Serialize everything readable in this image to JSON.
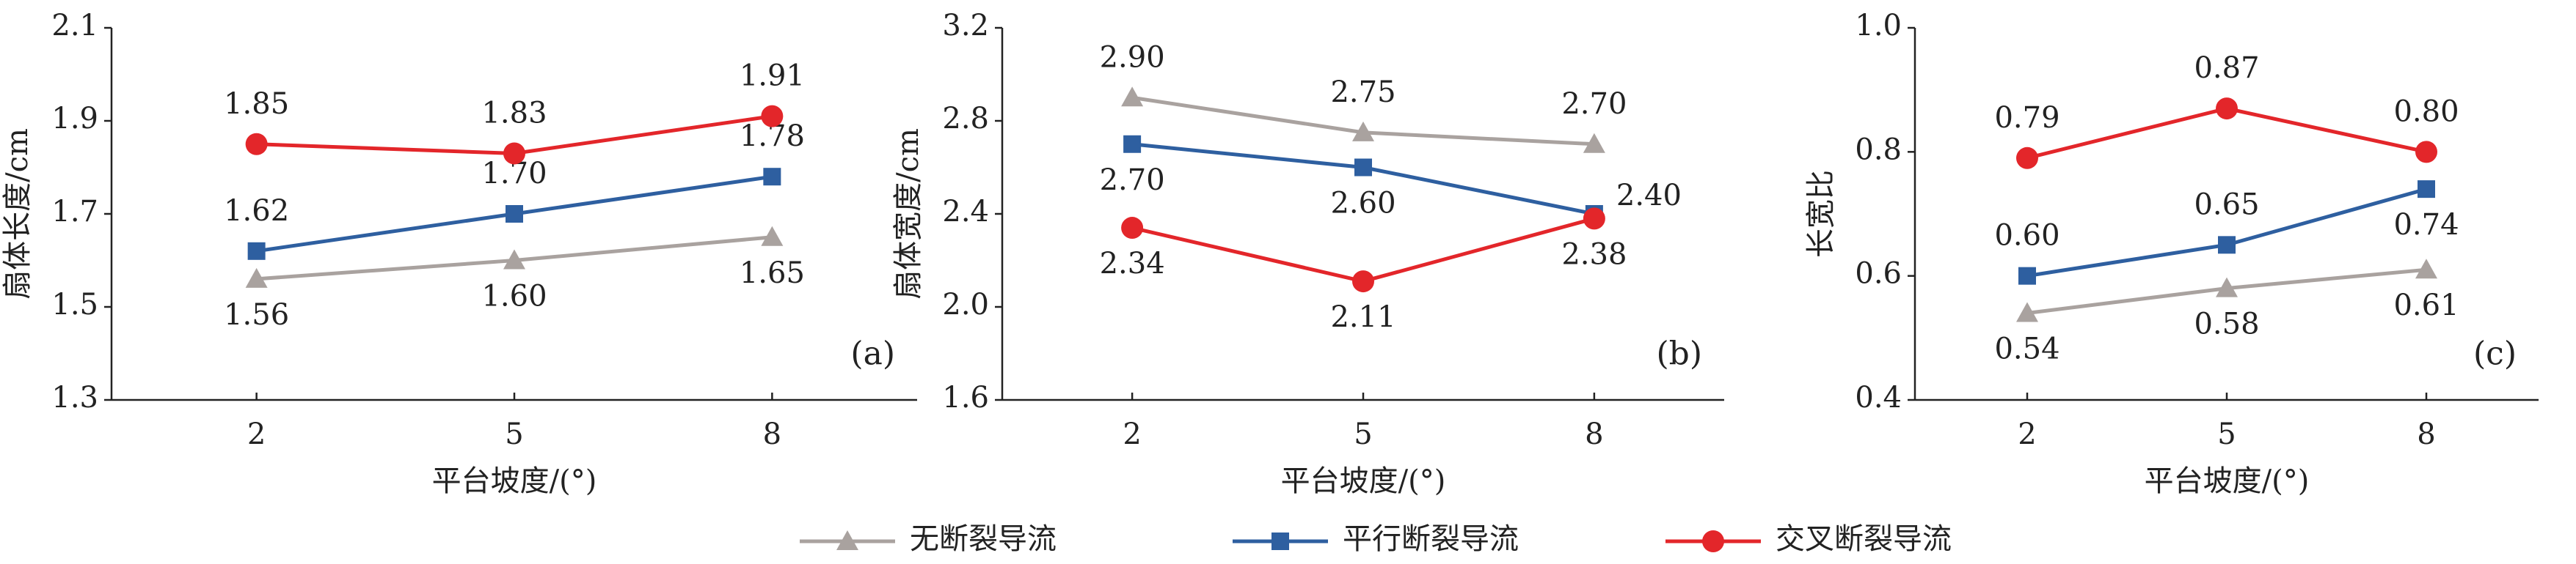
{
  "chart_data": [
    {
      "type": "line",
      "ylabel": "扇体长度/cm",
      "xlabel": "平台坡度/(°)",
      "annotation": "(a)",
      "categories": [
        "2",
        "5",
        "8"
      ],
      "ylim": [
        1.3,
        2.1
      ],
      "yticks": [
        1.3,
        1.5,
        1.7,
        1.9,
        2.1
      ],
      "series": [
        {
          "values": [
            1.56,
            1.6,
            1.65
          ],
          "value_labels": [
            "1.56",
            "1.60",
            "1.65"
          ]
        },
        {
          "values": [
            1.62,
            1.7,
            1.78
          ],
          "value_labels": [
            "1.62",
            "1.70",
            "1.78"
          ]
        },
        {
          "values": [
            1.85,
            1.83,
            1.91
          ],
          "value_labels": [
            "1.85",
            "1.83",
            "1.91"
          ]
        }
      ]
    },
    {
      "type": "line",
      "ylabel": "扇体宽度/cm",
      "xlabel": "平台坡度/(°)",
      "annotation": "(b)",
      "categories": [
        "2",
        "5",
        "8"
      ],
      "ylim": [
        1.6,
        3.2
      ],
      "yticks": [
        1.6,
        {
          "value": 2,
          "label": "2.0"
        },
        2.4,
        2.8,
        3.2
      ],
      "series": [
        {
          "values": [
            2.9,
            2.75,
            2.7
          ],
          "value_labels": [
            "2.90",
            "2.75",
            "2.70"
          ]
        },
        {
          "values": [
            2.7,
            2.6,
            2.4
          ],
          "value_labels": [
            "2.70",
            "2.60",
            "2.40"
          ]
        },
        {
          "values": [
            2.34,
            2.11,
            2.38
          ],
          "value_labels": [
            "2.34",
            "2.11",
            "2.38"
          ]
        }
      ]
    },
    {
      "type": "line",
      "ylabel": "长宽比",
      "xlabel": "平台坡度/(°)",
      "annotation": "(c)",
      "categories": [
        "2",
        "5",
        "8"
      ],
      "ylim": [
        0.4,
        1.0
      ],
      "yticks": [
        0.4,
        0.6,
        0.8,
        {
          "value": 1,
          "label": "1.0"
        }
      ],
      "series": [
        {
          "values": [
            0.54,
            0.58,
            0.61
          ],
          "value_labels": [
            "0.54",
            "0.58",
            "0.61"
          ]
        },
        {
          "values": [
            0.6,
            0.65,
            0.74
          ],
          "value_labels": [
            "0.60",
            "0.65",
            "0.74"
          ]
        },
        {
          "values": [
            0.79,
            0.87,
            0.8
          ],
          "value_labels": [
            "0.79",
            "0.87",
            "0.80"
          ]
        }
      ]
    }
  ],
  "legend": [
    {
      "name": "无断裂导流",
      "color": "#a9a29f",
      "marker": "triangle"
    },
    {
      "name": "平行断裂导流",
      "color": "#2e5fa0",
      "marker": "square"
    },
    {
      "name": "交叉断裂导流",
      "color": "#e3262a",
      "marker": "circle"
    }
  ]
}
